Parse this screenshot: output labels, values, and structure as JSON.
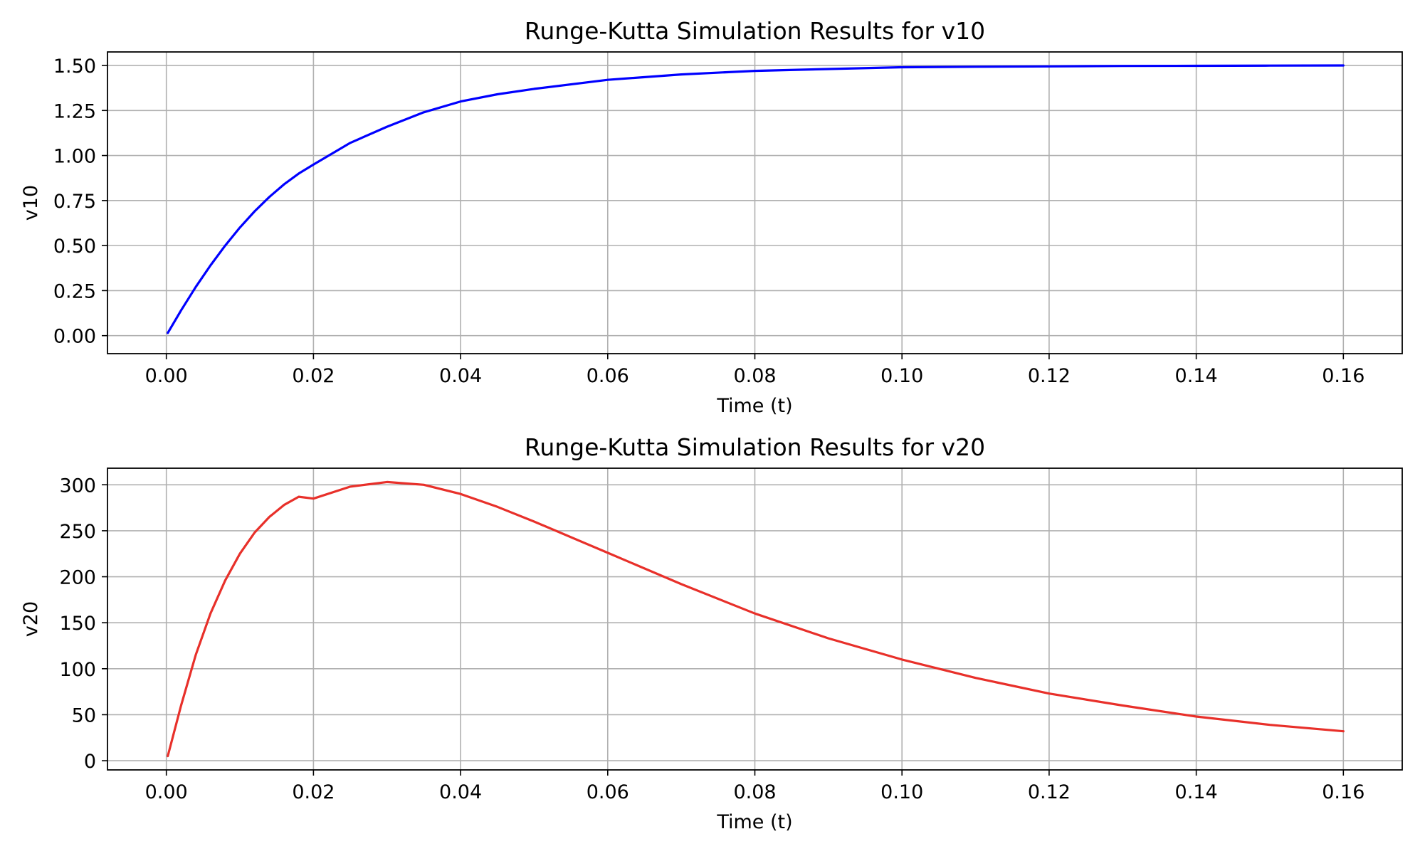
{
  "chart_data": [
    {
      "type": "line",
      "title": "Runge-Kutta Simulation Results for v10",
      "xlabel": "Time (t)",
      "ylabel": "v10",
      "xlim": [
        -0.008,
        0.168
      ],
      "ylim": [
        -0.1,
        1.575
      ],
      "xticks": [
        0.0,
        0.02,
        0.04,
        0.06,
        0.08,
        0.1,
        0.12,
        0.14,
        0.16
      ],
      "xtick_labels": [
        "0.00",
        "0.02",
        "0.04",
        "0.06",
        "0.08",
        "0.10",
        "0.12",
        "0.14",
        "0.16"
      ],
      "yticks": [
        0.0,
        0.25,
        0.5,
        0.75,
        1.0,
        1.25,
        1.5
      ],
      "ytick_labels": [
        "0.00",
        "0.25",
        "0.50",
        "0.75",
        "1.00",
        "1.25",
        "1.50"
      ],
      "grid": true,
      "series": [
        {
          "color": "#0000ff",
          "x": [
            0.0002,
            0.002,
            0.004,
            0.006,
            0.008,
            0.01,
            0.012,
            0.014,
            0.016,
            0.018,
            0.02,
            0.025,
            0.03,
            0.035,
            0.04,
            0.045,
            0.05,
            0.06,
            0.07,
            0.08,
            0.09,
            0.1,
            0.11,
            0.12,
            0.13,
            0.14,
            0.15,
            0.16
          ],
          "y": [
            0.015,
            0.14,
            0.27,
            0.39,
            0.5,
            0.6,
            0.69,
            0.77,
            0.84,
            0.9,
            0.95,
            1.07,
            1.16,
            1.24,
            1.3,
            1.34,
            1.37,
            1.42,
            1.45,
            1.47,
            1.48,
            1.49,
            1.493,
            1.495,
            1.497,
            1.498,
            1.499,
            1.5
          ]
        }
      ]
    },
    {
      "type": "line",
      "title": "Runge-Kutta Simulation Results for v20",
      "xlabel": "Time (t)",
      "ylabel": "v20",
      "xlim": [
        -0.008,
        0.168
      ],
      "ylim": [
        -10,
        318
      ],
      "xticks": [
        0.0,
        0.02,
        0.04,
        0.06,
        0.08,
        0.1,
        0.12,
        0.14,
        0.16
      ],
      "xtick_labels": [
        "0.00",
        "0.02",
        "0.04",
        "0.06",
        "0.08",
        "0.10",
        "0.12",
        "0.14",
        "0.16"
      ],
      "yticks": [
        0,
        50,
        100,
        150,
        200,
        250,
        300
      ],
      "ytick_labels": [
        "0",
        "50",
        "100",
        "150",
        "200",
        "250",
        "300"
      ],
      "grid": true,
      "series": [
        {
          "color": "#e8302a",
          "x": [
            0.0002,
            0.002,
            0.004,
            0.006,
            0.008,
            0.01,
            0.012,
            0.014,
            0.016,
            0.018,
            0.02,
            0.025,
            0.03,
            0.035,
            0.04,
            0.045,
            0.05,
            0.06,
            0.07,
            0.08,
            0.09,
            0.1,
            0.11,
            0.12,
            0.13,
            0.14,
            0.15,
            0.16
          ],
          "y": [
            5,
            60,
            115,
            160,
            196,
            225,
            248,
            265,
            278,
            287,
            285,
            298,
            303,
            300,
            290,
            276,
            260,
            226,
            192,
            160,
            133,
            110,
            90,
            73,
            60,
            48,
            39,
            32
          ]
        }
      ]
    }
  ]
}
